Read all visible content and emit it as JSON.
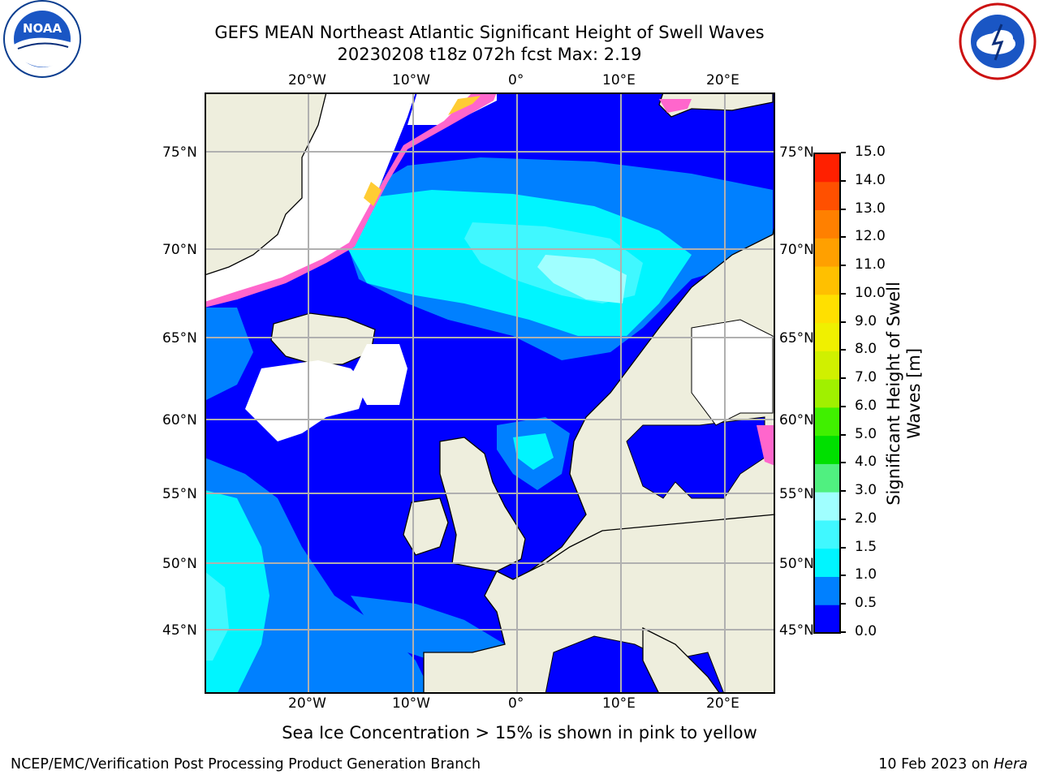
{
  "header": {
    "title_line1": "GEFS MEAN Northeast Atlantic Significant Height of Swell Waves",
    "title_line2": "20230208 t18z 072h fcst   Max: 2.19"
  },
  "logos": {
    "left": "NOAA",
    "left_ring": "NATIONAL OCEANIC AND ATMOSPHERIC ADMINISTRATION · U.S. DEPARTMENT OF COMMERCE",
    "right_ring": "NATIONAL WEATHER SERVICE"
  },
  "map": {
    "lon_labels": [
      "20°W",
      "10°W",
      "0°",
      "10°E",
      "20°E"
    ],
    "lat_labels": [
      "75°N",
      "70°N",
      "65°N",
      "60°N",
      "55°N",
      "50°N",
      "45°N"
    ],
    "colors": {
      "land": "#eeeedd",
      "no_data": "#ffffff",
      "grid": "#b0b0b0",
      "coast": "#000000"
    }
  },
  "colorbar": {
    "label_line1": "Significant Height of Swell",
    "label_line2": "Waves [m]",
    "ticks": [
      "0.0",
      "0.5",
      "1.0",
      "1.5",
      "2.0",
      "3.0",
      "4.0",
      "5.0",
      "6.0",
      "7.0",
      "8.0",
      "9.0",
      "10.0",
      "11.0",
      "12.0",
      "13.0",
      "14.0",
      "15.0"
    ],
    "colors": [
      "#0000ff",
      "#0080ff",
      "#00f5ff",
      "#40f8ff",
      "#a0ffff",
      "#50f080",
      "#00e000",
      "#40f000",
      "#a0f000",
      "#d0f000",
      "#f0f000",
      "#ffe000",
      "#ffc000",
      "#ffa000",
      "#ff8000",
      "#ff5000",
      "#ff2000"
    ]
  },
  "ice_note": "Sea Ice Concentration > 15% is shown in pink to yellow",
  "footer": {
    "left": "NCEP/EMC/Verification Post Processing Product Generation Branch",
    "date": "10 Feb 2023 on ",
    "host": "Hera"
  }
}
